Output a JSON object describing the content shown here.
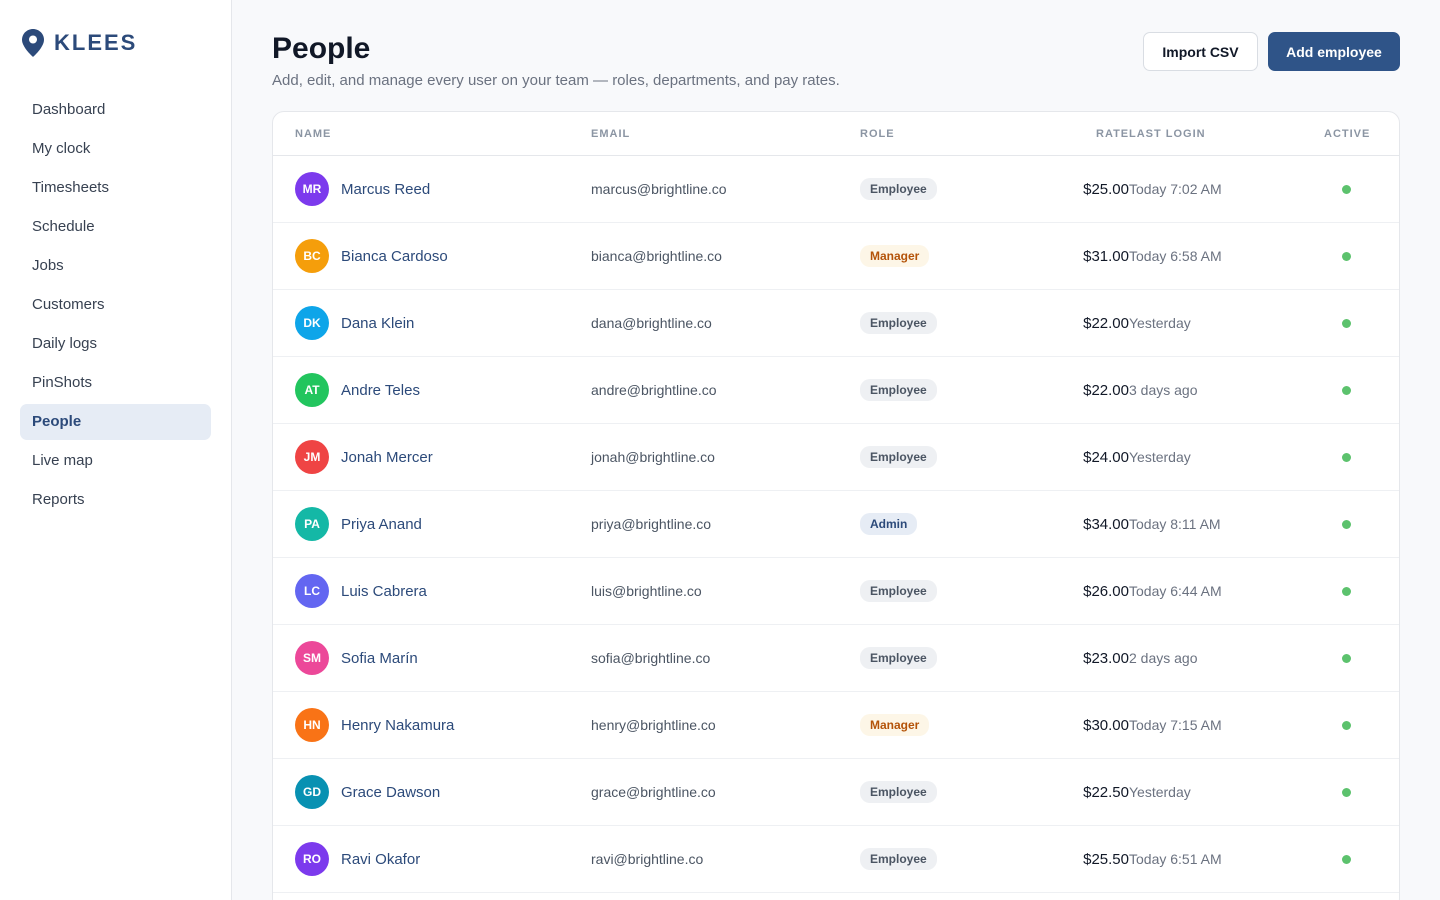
{
  "brand": {
    "name": "KLEES",
    "icon": "location-pin-icon",
    "color": "#2c4a7a"
  },
  "sidebar": {
    "items": [
      {
        "label": "Dashboard",
        "id": "dashboard"
      },
      {
        "label": "My clock",
        "id": "my-clock"
      },
      {
        "label": "Timesheets",
        "id": "timesheets"
      },
      {
        "label": "Schedule",
        "id": "schedule"
      },
      {
        "label": "Jobs",
        "id": "jobs"
      },
      {
        "label": "Customers",
        "id": "customers"
      },
      {
        "label": "Daily logs",
        "id": "daily-logs"
      },
      {
        "label": "PinShots",
        "id": "pinshots"
      },
      {
        "label": "People",
        "id": "people",
        "active": true
      },
      {
        "label": "Live map",
        "id": "live-map"
      },
      {
        "label": "Reports",
        "id": "reports"
      }
    ]
  },
  "header": {
    "title": "People",
    "subtitle": "Add, edit, and manage every user on your team — roles, departments, and pay rates.",
    "import_label": "Import CSV",
    "add_label": "Add employee"
  },
  "table": {
    "columns": {
      "name": "NAME",
      "email": "EMAIL",
      "role": "ROLE",
      "rate": "RATE",
      "last_login": "LAST LOGIN",
      "active": "ACTIVE"
    },
    "rows": [
      {
        "initials": "MR",
        "color": "#7c3aed",
        "name": "Marcus Reed",
        "email": "marcus@brightline.co",
        "role": "Employee",
        "rate": "$25.00",
        "last_login": "Today 7:02 AM",
        "active": true
      },
      {
        "initials": "BC",
        "color": "#f59e0b",
        "name": "Bianca Cardoso",
        "email": "bianca@brightline.co",
        "role": "Manager",
        "rate": "$31.00",
        "last_login": "Today 6:58 AM",
        "active": true
      },
      {
        "initials": "DK",
        "color": "#0ea5e9",
        "name": "Dana Klein",
        "email": "dana@brightline.co",
        "role": "Employee",
        "rate": "$22.00",
        "last_login": "Yesterday",
        "active": true
      },
      {
        "initials": "AT",
        "color": "#22c55e",
        "name": "Andre Teles",
        "email": "andre@brightline.co",
        "role": "Employee",
        "rate": "$22.00",
        "last_login": "3 days ago",
        "active": true
      },
      {
        "initials": "JM",
        "color": "#ef4444",
        "name": "Jonah Mercer",
        "email": "jonah@brightline.co",
        "role": "Employee",
        "rate": "$24.00",
        "last_login": "Yesterday",
        "active": true
      },
      {
        "initials": "PA",
        "color": "#14b8a6",
        "name": "Priya Anand",
        "email": "priya@brightline.co",
        "role": "Admin",
        "rate": "$34.00",
        "last_login": "Today 8:11 AM",
        "active": true
      },
      {
        "initials": "LC",
        "color": "#6366f1",
        "name": "Luis Cabrera",
        "email": "luis@brightline.co",
        "role": "Employee",
        "rate": "$26.00",
        "last_login": "Today 6:44 AM",
        "active": true
      },
      {
        "initials": "SM",
        "color": "#ec4899",
        "name": "Sofia Marín",
        "email": "sofia@brightline.co",
        "role": "Employee",
        "rate": "$23.00",
        "last_login": "2 days ago",
        "active": true
      },
      {
        "initials": "HN",
        "color": "#f97316",
        "name": "Henry Nakamura",
        "email": "henry@brightline.co",
        "role": "Manager",
        "rate": "$30.00",
        "last_login": "Today 7:15 AM",
        "active": true
      },
      {
        "initials": "GD",
        "color": "#0891b2",
        "name": "Grace Dawson",
        "email": "grace@brightline.co",
        "role": "Employee",
        "rate": "$22.50",
        "last_login": "Yesterday",
        "active": true
      },
      {
        "initials": "RO",
        "color": "#7c3aed",
        "name": "Ravi Okafor",
        "email": "ravi@brightline.co",
        "role": "Employee",
        "rate": "$25.50",
        "last_login": "Today 6:51 AM",
        "active": true
      }
    ]
  }
}
